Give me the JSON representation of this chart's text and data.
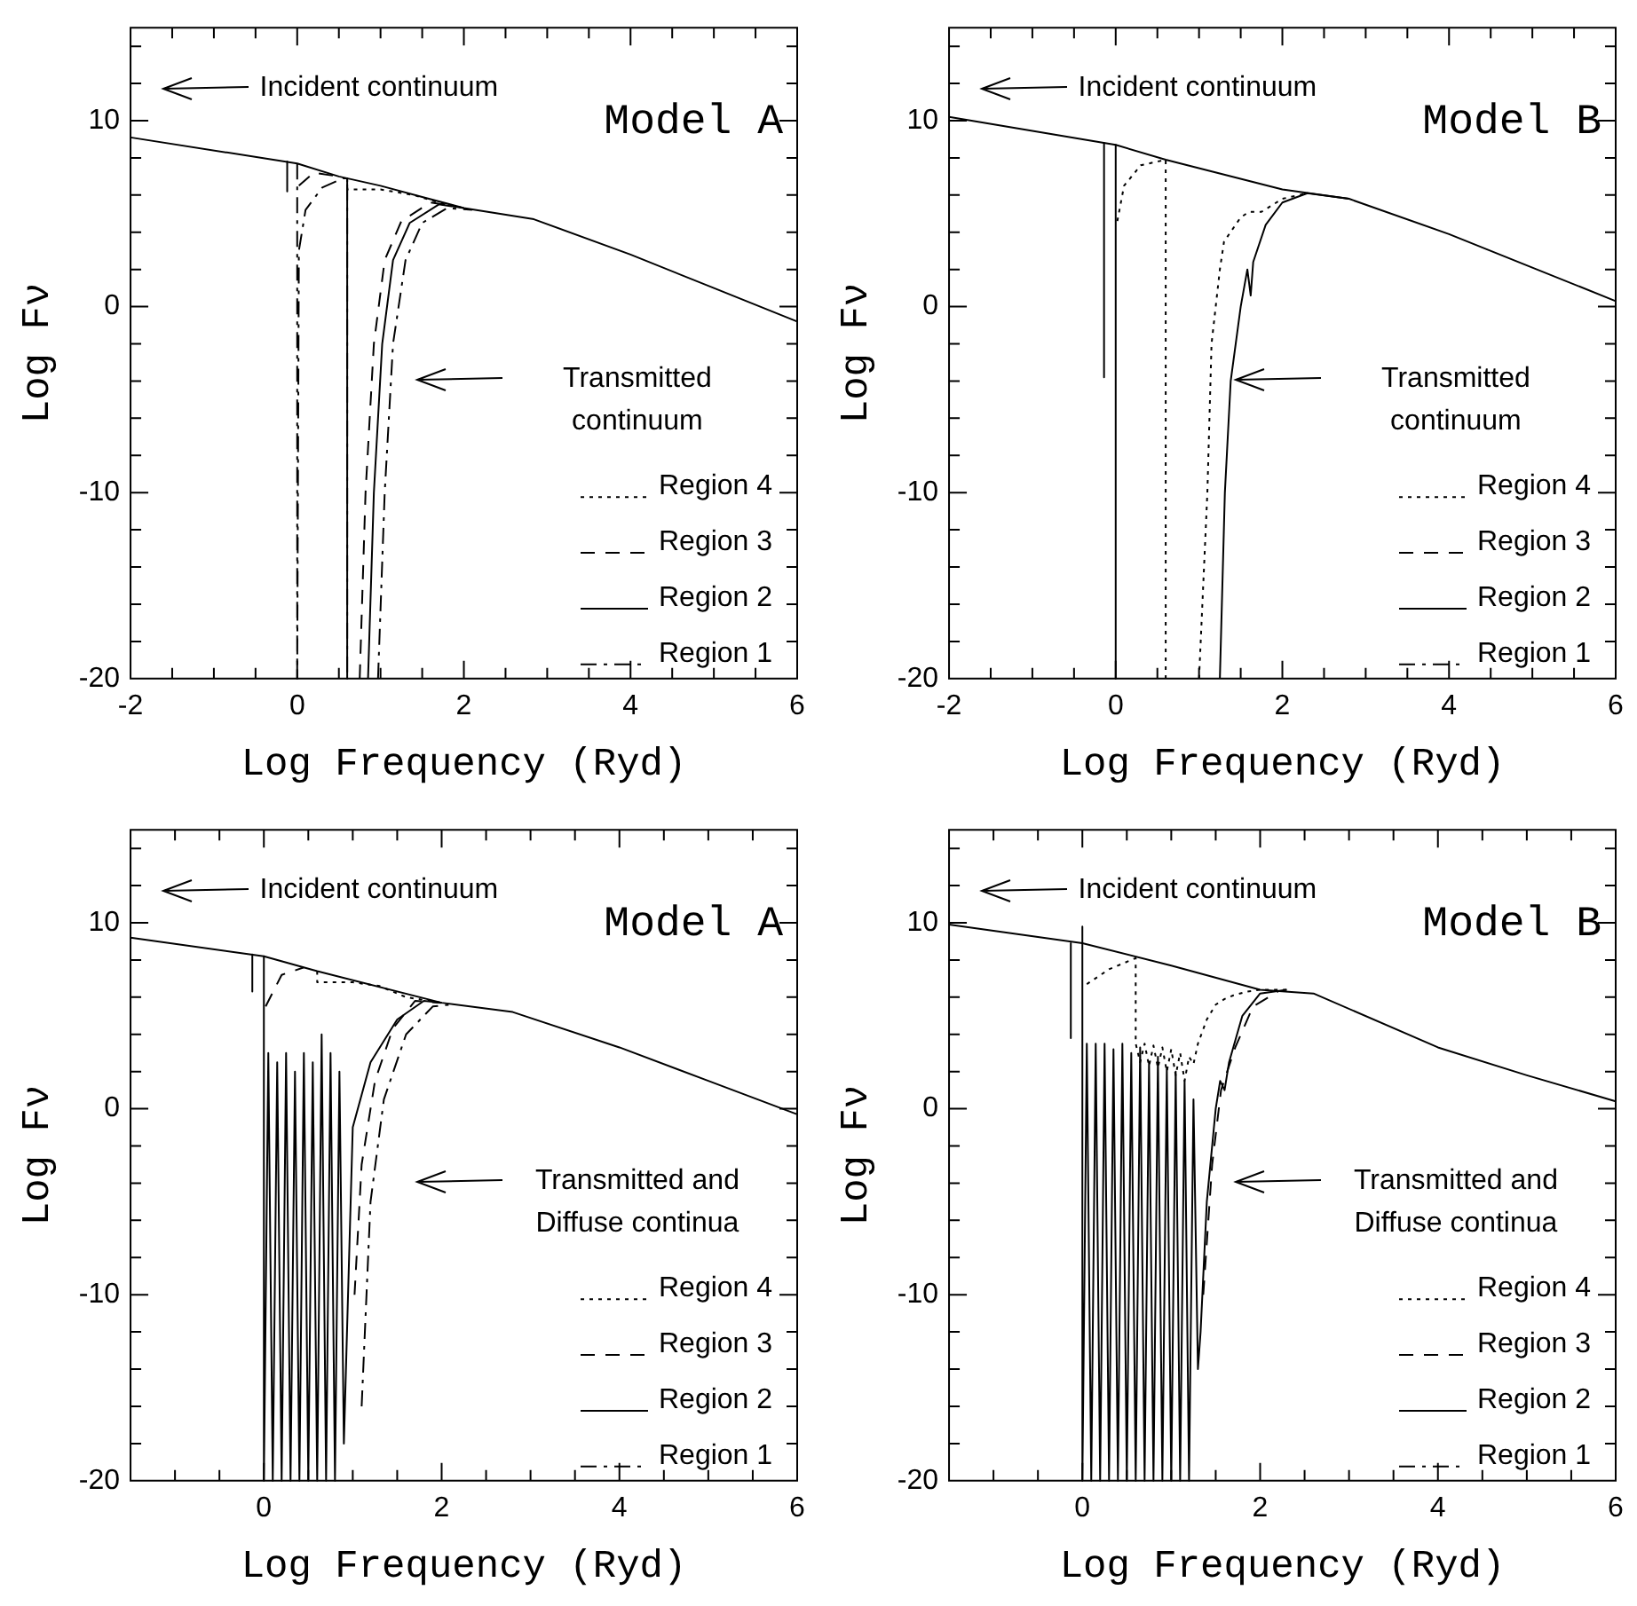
{
  "chart_data": [
    {
      "type": "line",
      "xlabel": "Log Frequency (Ryd)",
      "ylabel": "Log Fν",
      "legend": "bottom right",
      "annotations": [
        "Incident continuum",
        "Transmitted continuum",
        "Model A"
      ],
      "xlim": [
        -2,
        6
      ],
      "xticks": [
        -2,
        {
          "value": -1.5,
          "label": null
        },
        {
          "value": -1,
          "label": null
        },
        {
          "value": -0.5,
          "label": null
        },
        0,
        {
          "value": 0.5,
          "label": null
        },
        {
          "value": 1,
          "label": null
        },
        {
          "value": 1.5,
          "label": null
        },
        2,
        {
          "value": 2.5,
          "label": null
        },
        {
          "value": 3,
          "label": null
        },
        {
          "value": 3.5,
          "label": null
        },
        4,
        {
          "value": 4.5,
          "label": null
        },
        {
          "value": 5,
          "label": null
        },
        {
          "value": 5.5,
          "label": null
        },
        6
      ],
      "ylim": [
        -20,
        15
      ],
      "yticks": [
        -20,
        {
          "value": -18,
          "label": null
        },
        {
          "value": -16,
          "label": null
        },
        {
          "value": -14,
          "label": null
        },
        {
          "value": -12,
          "label": null
        },
        -10,
        {
          "value": -8,
          "label": null
        },
        {
          "value": -6,
          "label": null
        },
        {
          "value": -4,
          "label": null
        },
        {
          "value": -2,
          "label": null
        },
        0,
        {
          "value": 2,
          "label": null
        },
        {
          "value": 4,
          "label": null
        },
        {
          "value": 6,
          "label": null
        },
        {
          "value": 8,
          "label": null
        },
        10,
        {
          "value": 12,
          "label": null
        },
        {
          "value": 14,
          "label": null
        }
      ],
      "series": [
        {
          "color": "#000000",
          "line_style": "solid",
          "x": [
            -2,
            0,
            0.5,
            1,
            1.5,
            2,
            2.84,
            4,
            5,
            6
          ],
          "values": [
            9.1,
            7.7,
            7.0,
            6.5,
            5.9,
            5.3,
            4.7,
            2.8,
            1.0,
            -0.8
          ]
        },
        {
          "name": "Region 4",
          "color": "#000000",
          "line_style": "dotted",
          "x": [
            0.6,
            0.6,
            1.0,
            1.4,
            1.7,
            2.0
          ],
          "values": [
            6.9,
            6.3,
            6.3,
            6.0,
            5.6,
            5.3
          ]
        },
        {
          "name": "Region 3",
          "color": "#000000",
          "line_style": "dashed",
          "x": [
            0.02,
            0.2,
            0.5,
            0.55,
            0.75,
            0.82,
            0.92,
            1.05,
            1.25,
            1.6,
            1.9
          ],
          "values": [
            6.5,
            7.2,
            7.0,
            null,
            -20,
            -10,
            -2,
            2.5,
            4.6,
            5.6,
            5.4
          ]
        },
        {
          "name": "Region 2",
          "color": "#000000",
          "line_style": "solid",
          "x": [
            -0.12,
            -0.12,
            -0.1,
            0.6,
            0.6,
            0.7,
            0.85,
            0.92,
            1.02,
            1.15,
            1.35,
            1.7,
            2.0
          ],
          "values": [
            7.8,
            6.2,
            null,
            6.9,
            -20,
            null,
            -20,
            -10,
            -2,
            2.5,
            4.5,
            5.5,
            5.3
          ]
        },
        {
          "name": "Region 1",
          "color": "#000000",
          "line_style": "dashdot",
          "x": [
            0,
            0,
            0.02,
            0.1,
            0.3,
            0.55,
            0.6,
            0.6,
            0.62,
            0.97,
            1.05,
            1.15,
            1.3,
            1.5,
            1.8,
            2.1
          ],
          "values": [
            7.7,
            -20,
            3,
            5.2,
            6.4,
            6.9,
            6.9,
            -20,
            null,
            -20,
            -10,
            -2,
            2.5,
            4.5,
            5.3,
            5.2
          ]
        }
      ]
    },
    {
      "type": "line",
      "xlabel": "Log Frequency (Ryd)",
      "ylabel": "Log Fν",
      "legend": "bottom right",
      "annotations": [
        "Incident continuum",
        "Transmitted continuum",
        "Model B"
      ],
      "xlim": [
        -2,
        6
      ],
      "xticks": [
        -2,
        {
          "value": -1.5,
          "label": null
        },
        {
          "value": -1,
          "label": null
        },
        {
          "value": -0.5,
          "label": null
        },
        0,
        {
          "value": 0.5,
          "label": null
        },
        {
          "value": 1,
          "label": null
        },
        {
          "value": 1.5,
          "label": null
        },
        2,
        {
          "value": 2.5,
          "label": null
        },
        {
          "value": 3,
          "label": null
        },
        {
          "value": 3.5,
          "label": null
        },
        4,
        {
          "value": 4.5,
          "label": null
        },
        {
          "value": 5,
          "label": null
        },
        {
          "value": 5.5,
          "label": null
        },
        6
      ],
      "ylim": [
        -20,
        15
      ],
      "yticks": [
        -20,
        {
          "value": -18,
          "label": null
        },
        {
          "value": -16,
          "label": null
        },
        {
          "value": -14,
          "label": null
        },
        {
          "value": -12,
          "label": null
        },
        -10,
        {
          "value": -8,
          "label": null
        },
        {
          "value": -6,
          "label": null
        },
        {
          "value": -4,
          "label": null
        },
        {
          "value": -2,
          "label": null
        },
        0,
        {
          "value": 2,
          "label": null
        },
        {
          "value": 4,
          "label": null
        },
        {
          "value": 6,
          "label": null
        },
        {
          "value": 8,
          "label": null
        },
        10,
        {
          "value": 12,
          "label": null
        },
        {
          "value": 14,
          "label": null
        }
      ],
      "series": [
        {
          "color": "#000000",
          "line_style": "solid",
          "x": [
            -2,
            0,
            0.6,
            2,
            2.8,
            4,
            5,
            6
          ],
          "values": [
            10.2,
            8.7,
            7.9,
            6.3,
            5.8,
            3.9,
            2.1,
            0.3
          ]
        },
        {
          "name": "Region 4",
          "color": "#000000",
          "line_style": "dotted",
          "x": [
            0.02,
            0.1,
            0.3,
            0.6,
            0.6,
            0.7,
            1.0,
            1.1,
            1.15,
            1.25,
            1.3,
            1.5,
            1.6,
            1.75,
            2,
            2.3
          ],
          "values": [
            4.6,
            6.5,
            7.6,
            7.9,
            -20,
            null,
            -20,
            -10,
            -2,
            2,
            3.5,
            4.8,
            5.1,
            5.1,
            5.8,
            6.1
          ]
        },
        {
          "name": "Region 3",
          "color": "#000000",
          "line_style": "dashed",
          "x": [
            null
          ],
          "values": [
            null
          ]
        },
        {
          "name": "Region 2",
          "color": "#000000",
          "line_style": "solid",
          "x": [
            -0.14,
            -0.14,
            -0.1,
            0,
            0,
            0.1,
            1.25,
            1.31,
            1.38,
            1.5,
            1.58,
            1.62,
            1.65,
            1.8,
            2,
            2.3,
            2.8
          ],
          "values": [
            8.8,
            -3.8,
            null,
            8.7,
            -20,
            null,
            -20,
            -10,
            -4,
            0,
            2,
            0.6,
            2.4,
            4.4,
            5.6,
            6.1,
            5.8
          ]
        },
        {
          "name": "Region 1",
          "color": "#000000",
          "line_style": "dashdot",
          "x": [
            null
          ],
          "values": [
            null
          ]
        }
      ]
    },
    {
      "type": "line",
      "xlabel": "Log Frequency (Ryd)",
      "ylabel": "Log Fν",
      "legend": "bottom right",
      "annotations": [
        "Incident continuum",
        "Transmitted and Diffuse continua",
        "Model A"
      ],
      "xlim": [
        -1.5,
        6
      ],
      "xticks": [
        {
          "value": -1.5,
          "label": null
        },
        {
          "value": -1,
          "label": null
        },
        {
          "value": -0.5,
          "label": null
        },
        0,
        {
          "value": 0.5,
          "label": null
        },
        {
          "value": 1,
          "label": null
        },
        {
          "value": 1.5,
          "label": null
        },
        2,
        {
          "value": 2.5,
          "label": null
        },
        {
          "value": 3,
          "label": null
        },
        {
          "value": 3.5,
          "label": null
        },
        4,
        {
          "value": 4.5,
          "label": null
        },
        {
          "value": 5,
          "label": null
        },
        {
          "value": 5.5,
          "label": null
        },
        6
      ],
      "ylim": [
        -20,
        15
      ],
      "yticks": [
        -20,
        {
          "value": -18,
          "label": null
        },
        {
          "value": -16,
          "label": null
        },
        {
          "value": -14,
          "label": null
        },
        {
          "value": -12,
          "label": null
        },
        -10,
        {
          "value": -8,
          "label": null
        },
        {
          "value": -6,
          "label": null
        },
        {
          "value": -4,
          "label": null
        },
        {
          "value": -2,
          "label": null
        },
        0,
        {
          "value": 2,
          "label": null
        },
        {
          "value": 4,
          "label": null
        },
        {
          "value": 6,
          "label": null
        },
        {
          "value": 8,
          "label": null
        },
        10,
        {
          "value": 12,
          "label": null
        },
        {
          "value": 14,
          "label": null
        }
      ],
      "series": [
        {
          "color": "#000000",
          "line_style": "solid",
          "x": [
            -1.5,
            0,
            0.6,
            2,
            2.8,
            4,
            5,
            6
          ],
          "values": [
            9.2,
            8.2,
            7.4,
            5.7,
            5.2,
            3.3,
            1.5,
            -0.3
          ]
        },
        {
          "name": "Region 4",
          "color": "#000000",
          "line_style": "dotted",
          "x": [
            0.6,
            0.6,
            1.0,
            1.3,
            1.6,
            2.0
          ],
          "values": [
            7.4,
            6.8,
            6.8,
            6.6,
            6.0,
            5.7
          ]
        },
        {
          "name": "Region 3",
          "color": "#000000",
          "line_style": "dashed",
          "x": [
            0.02,
            0.2,
            0.45,
            null,
            1.02,
            1.1,
            1.25,
            1.45,
            1.7,
            2.0
          ],
          "values": [
            5.5,
            7.2,
            7.6,
            null,
            -10,
            -3,
            1.5,
            4.3,
            5.8,
            5.7
          ]
        },
        {
          "name": "Region 2",
          "color": "#000000",
          "line_style": "solid",
          "x": [
            -0.13,
            -0.13,
            -0.1,
            0,
            0,
            0.05,
            0.1,
            0.15,
            0.2,
            0.25,
            0.3,
            0.35,
            0.4,
            0.45,
            0.5,
            0.55,
            0.6,
            0.65,
            0.7,
            0.75,
            0.8,
            0.85,
            0.9,
            1.0,
            1.2,
            1.5,
            1.8,
            2.0
          ],
          "values": [
            8.3,
            6.3,
            null,
            8.2,
            -20,
            3,
            -20,
            2.5,
            -20,
            3,
            -20,
            2,
            -20,
            3,
            -20,
            2.5,
            -20,
            4,
            -20,
            3,
            -20,
            2,
            -18,
            -1,
            2.5,
            4.8,
            5.8,
            5.7
          ]
        },
        {
          "name": "Region 1",
          "color": "#000000",
          "line_style": "dashdot",
          "x": [
            1.1,
            1.2,
            1.35,
            1.6,
            1.9,
            2.1
          ],
          "values": [
            -16,
            -5,
            0.5,
            4,
            5.5,
            5.6
          ]
        }
      ]
    },
    {
      "type": "line",
      "xlabel": "Log Frequency (Ryd)",
      "ylabel": "Log Fν",
      "legend": "bottom right",
      "annotations": [
        "Incident continuum",
        "Transmitted and Diffuse continua",
        "Model B"
      ],
      "xlim": [
        -1.5,
        6
      ],
      "xticks": [
        {
          "value": -1.5,
          "label": null
        },
        {
          "value": -1,
          "label": null
        },
        {
          "value": -0.5,
          "label": null
        },
        0,
        {
          "value": 0.5,
          "label": null
        },
        {
          "value": 1,
          "label": null
        },
        {
          "value": 1.5,
          "label": null
        },
        2,
        {
          "value": 2.5,
          "label": null
        },
        {
          "value": 3,
          "label": null
        },
        {
          "value": 3.5,
          "label": null
        },
        4,
        {
          "value": 4.5,
          "label": null
        },
        {
          "value": 5,
          "label": null
        },
        {
          "value": 5.5,
          "label": null
        },
        6
      ],
      "ylim": [
        -20,
        15
      ],
      "yticks": [
        -20,
        {
          "value": -18,
          "label": null
        },
        {
          "value": -16,
          "label": null
        },
        {
          "value": -14,
          "label": null
        },
        {
          "value": -12,
          "label": null
        },
        -10,
        {
          "value": -8,
          "label": null
        },
        {
          "value": -6,
          "label": null
        },
        {
          "value": -4,
          "label": null
        },
        {
          "value": -2,
          "label": null
        },
        0,
        {
          "value": 2,
          "label": null
        },
        {
          "value": 4,
          "label": null
        },
        {
          "value": 6,
          "label": null
        },
        {
          "value": 8,
          "label": null
        },
        10,
        {
          "value": 12,
          "label": null
        },
        {
          "value": 14,
          "label": null
        }
      ],
      "series": [
        {
          "color": "#000000",
          "line_style": "solid",
          "x": [
            -1.5,
            0,
            1,
            2,
            2.6,
            4,
            5,
            6
          ],
          "values": [
            9.9,
            8.9,
            7.7,
            6.4,
            6.2,
            3.3,
            1.8,
            0.4
          ]
        },
        {
          "name": "Region 4",
          "color": "#000000",
          "line_style": "dotted",
          "x": [
            0.05,
            0.3,
            0.6,
            0.6,
            0.65,
            0.7,
            0.75,
            0.8,
            0.85,
            0.9,
            0.95,
            1.0,
            1.05,
            1.1,
            1.15,
            1.2,
            1.25,
            1.3,
            1.4,
            1.5,
            1.6,
            1.7,
            1.85,
            2.0,
            2.3
          ],
          "values": [
            6.7,
            7.5,
            8.1,
            3.5,
            2.5,
            3.5,
            2.3,
            3.4,
            2.2,
            3.3,
            2,
            3.2,
            1.8,
            3,
            1.5,
            2.8,
            2.4,
            3.5,
            4.8,
            5.6,
            5.9,
            6.1,
            6.3,
            6.4,
            6.4
          ]
        },
        {
          "name": "Region 3",
          "color": "#000000",
          "line_style": "dashed",
          "x": [
            1.36,
            1.46,
            1.56,
            1.72,
            1.92,
            2.2
          ],
          "values": [
            -10,
            -3,
            1,
            3.3,
            5.5,
            6.3
          ]
        },
        {
          "name": "Region 2",
          "color": "#000000",
          "line_style": "solid",
          "x": [
            -0.13,
            -0.13,
            -0.1,
            0,
            0,
            0.05,
            0.1,
            0.15,
            0.2,
            0.25,
            0.3,
            0.35,
            0.4,
            0.45,
            0.5,
            0.55,
            0.6,
            0.65,
            0.7,
            0.75,
            0.8,
            0.85,
            0.9,
            0.95,
            1.0,
            1.05,
            1.1,
            1.15,
            1.2,
            1.25,
            1.3,
            1.33,
            1.4,
            1.5,
            1.55,
            1.6,
            1.65,
            1.8,
            2.0,
            2.3
          ],
          "values": [
            8.9,
            3.8,
            null,
            9.8,
            -20,
            3.5,
            -20,
            3.5,
            -20,
            3.5,
            -20,
            3.2,
            -20,
            3.5,
            -20,
            3,
            -20,
            3.3,
            -20,
            2.5,
            -20,
            2.8,
            -20,
            2.2,
            -20,
            2,
            -20,
            1.5,
            -20,
            0.5,
            -14,
            -12,
            -5,
            0,
            1.5,
            1,
            2.5,
            5,
            6.2,
            6.4
          ]
        },
        {
          "name": "Region 1",
          "color": "#000000",
          "line_style": "dashdot",
          "x": [
            null
          ],
          "values": [
            null
          ]
        }
      ]
    }
  ]
}
